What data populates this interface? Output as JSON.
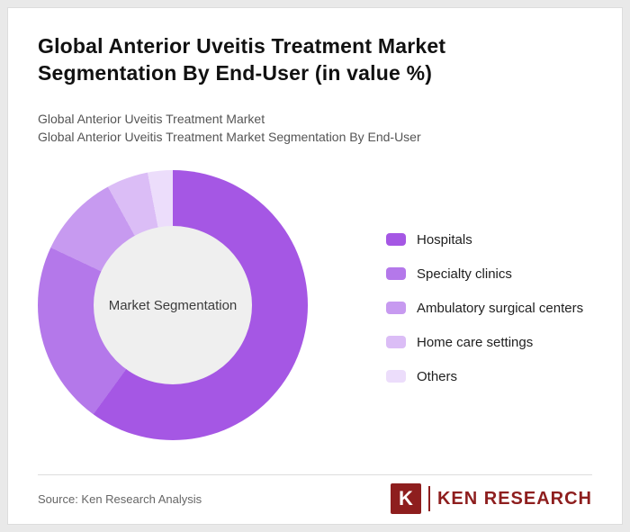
{
  "page": {
    "title": "Global Anterior Uveitis Treatment Market Segmentation By End-User (in value %)",
    "subtitle1": "Global Anterior Uveitis Treatment Market",
    "subtitle2": "Global Anterior Uveitis Treatment Market Segmentation By End-User"
  },
  "chart_data": {
    "type": "pie",
    "donut": true,
    "title": "Global Anterior Uveitis Treatment Market Segmentation By End-User (in value %)",
    "center_label": "Market Segmentation",
    "categories": [
      "Hospitals",
      "Specialty clinics",
      "Ambulatory surgical centers",
      "Home care settings",
      "Others"
    ],
    "values": [
      60,
      22,
      10,
      5,
      3
    ],
    "colors": [
      "#a557e4",
      "#b478ea",
      "#c79af0",
      "#dbbdf6",
      "#ecddfb"
    ],
    "legend_position": "right",
    "hole_color": "#efefef"
  },
  "footer": {
    "source": "Source: Ken Research Analysis",
    "logo_letter": "K",
    "logo_text": "KEN RESEARCH",
    "logo_color": "#8e1e1e"
  }
}
